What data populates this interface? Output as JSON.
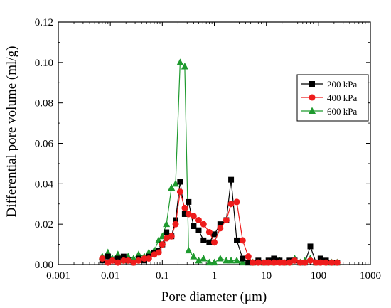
{
  "chart_data": {
    "type": "scatter",
    "xlabel": "Pore diameter (μm)",
    "ylabel": "Differential pore volume (ml/g)",
    "xscale": "log",
    "xlim": [
      0.001,
      1000
    ],
    "ylim": [
      0,
      0.12
    ],
    "x_ticks": [
      "0.001",
      "0.01",
      "0.1",
      "1",
      "10",
      "100",
      "1000"
    ],
    "y_ticks": [
      "0.00",
      "0.02",
      "0.04",
      "0.06",
      "0.08",
      "0.10",
      "0.12"
    ],
    "grid": false,
    "legend_position": "right",
    "series": [
      {
        "name": "200 kPa",
        "color": "#000000",
        "marker": "square",
        "x": [
          0.007,
          0.009,
          0.011,
          0.014,
          0.018,
          0.022,
          0.028,
          0.035,
          0.045,
          0.055,
          0.07,
          0.085,
          0.1,
          0.12,
          0.15,
          0.18,
          0.22,
          0.27,
          0.32,
          0.4,
          0.5,
          0.62,
          0.8,
          1.0,
          1.3,
          1.7,
          2.1,
          2.7,
          3.5,
          4.5,
          5.5,
          7,
          9,
          11,
          14,
          18,
          22,
          28,
          35,
          45,
          55,
          70,
          90,
          110,
          140,
          180,
          230
        ],
        "y": [
          0.002,
          0.004,
          0.002,
          0.003,
          0.004,
          0.002,
          0.001,
          0.003,
          0.002,
          0.004,
          0.006,
          0.007,
          0.01,
          0.016,
          0.014,
          0.022,
          0.041,
          0.025,
          0.031,
          0.019,
          0.017,
          0.012,
          0.011,
          0.015,
          0.02,
          0.022,
          0.042,
          0.012,
          0.003,
          0.001,
          0.001,
          0.002,
          0.001,
          0.002,
          0.003,
          0.002,
          0.001,
          0.002,
          0.002,
          0.001,
          0.001,
          0.009,
          0.001,
          0.003,
          0.002,
          0.001,
          0.001
        ]
      },
      {
        "name": "400 kPa",
        "color": "#ee1c1c",
        "marker": "circle",
        "x": [
          0.007,
          0.009,
          0.011,
          0.014,
          0.018,
          0.022,
          0.028,
          0.035,
          0.045,
          0.055,
          0.07,
          0.085,
          0.1,
          0.12,
          0.15,
          0.18,
          0.22,
          0.27,
          0.32,
          0.4,
          0.5,
          0.62,
          0.8,
          1.0,
          1.3,
          1.7,
          2.1,
          2.7,
          3.5,
          4.5,
          5.5,
          7,
          9,
          11,
          14,
          18,
          22,
          28,
          35,
          45,
          55,
          70,
          90,
          110,
          140,
          180,
          230
        ],
        "y": [
          0.003,
          0.001,
          0.002,
          0.001,
          0.002,
          0.002,
          0.001,
          0.002,
          0.003,
          0.003,
          0.005,
          0.006,
          0.01,
          0.013,
          0.014,
          0.02,
          0.036,
          0.028,
          0.025,
          0.024,
          0.022,
          0.02,
          0.016,
          0.011,
          0.018,
          0.022,
          0.03,
          0.031,
          0.012,
          0.004,
          0.001,
          0.001,
          0.001,
          0.001,
          0.001,
          0.001,
          0.001,
          0.001,
          0.002,
          0.001,
          0.001,
          0.002,
          0.001,
          0.001,
          0.001,
          0.001,
          0.001
        ]
      },
      {
        "name": "600 kPa",
        "color": "#1e9a2e",
        "marker": "triangle",
        "x": [
          0.007,
          0.009,
          0.011,
          0.014,
          0.018,
          0.022,
          0.028,
          0.035,
          0.045,
          0.055,
          0.07,
          0.085,
          0.1,
          0.12,
          0.15,
          0.18,
          0.22,
          0.27,
          0.32,
          0.4,
          0.5,
          0.62,
          0.8,
          1.0,
          1.3,
          1.7,
          2.1,
          2.7,
          3.5,
          4.5,
          5.5,
          7,
          9,
          11,
          14,
          18,
          22,
          28,
          35,
          45,
          55,
          70,
          90,
          110,
          140,
          180,
          230
        ],
        "y": [
          0.004,
          0.006,
          0.003,
          0.005,
          0.002,
          0.004,
          0.003,
          0.005,
          0.004,
          0.006,
          0.007,
          0.012,
          0.014,
          0.02,
          0.038,
          0.04,
          0.1,
          0.098,
          0.007,
          0.004,
          0.002,
          0.003,
          0.001,
          0.001,
          0.003,
          0.002,
          0.002,
          0.002,
          0.001,
          0.001,
          0.001,
          0.001,
          0.001,
          0.001,
          0.001,
          0.002,
          0.001,
          0.001,
          0.003,
          0.001,
          0.002,
          0.003,
          0.001,
          0.002,
          0.001,
          0.001,
          0.001
        ]
      }
    ]
  }
}
